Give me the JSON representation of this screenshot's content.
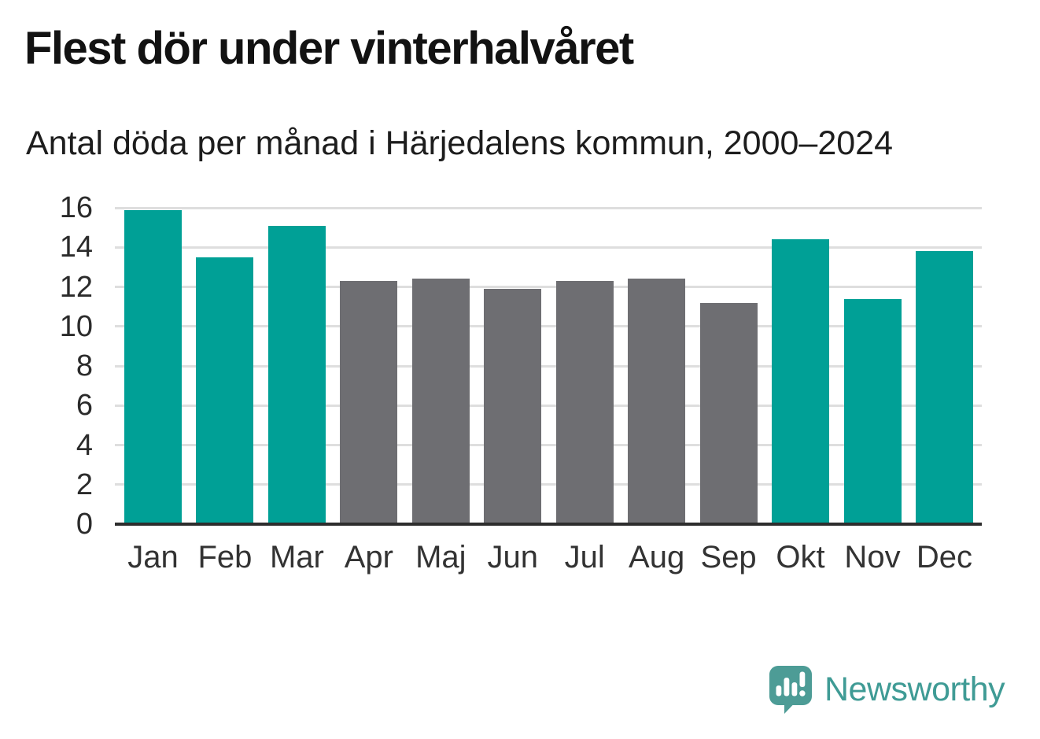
{
  "page": {
    "title": "Flest dör under vinterhalvåret",
    "subtitle": "Antal döda per månad i Härjedalens kommun, 2000–2024"
  },
  "chart_data": {
    "type": "bar",
    "title": "Flest dör under vinterhalvåret",
    "subtitle": "Antal döda per månad i Härjedalens kommun, 2000–2024",
    "categories": [
      "Jan",
      "Feb",
      "Mar",
      "Apr",
      "Maj",
      "Jun",
      "Jul",
      "Aug",
      "Sep",
      "Okt",
      "Nov",
      "Dec"
    ],
    "values": [
      15.9,
      13.5,
      15.1,
      12.3,
      12.4,
      11.9,
      12.3,
      12.4,
      11.2,
      14.4,
      11.4,
      13.8
    ],
    "bar_colors": [
      "teal",
      "teal",
      "teal",
      "gray",
      "gray",
      "gray",
      "gray",
      "gray",
      "gray",
      "teal",
      "teal",
      "teal"
    ],
    "xlabel": "",
    "ylabel": "",
    "ylim": [
      0,
      16
    ],
    "yticks": [
      0,
      2,
      4,
      6,
      8,
      10,
      12,
      14,
      16
    ],
    "grid": true,
    "legend": "none",
    "colors": {
      "highlight": "#00a096",
      "muted": "#6e6e72",
      "gridline": "#dedede",
      "axis": "#2d2d2d"
    }
  },
  "branding": {
    "logo_text": "Newsworthy",
    "logo_color": "#3f9b95",
    "logo_icon": "bar-chart-speech-bubble-icon",
    "logo_icon_color": "#4d9c96"
  }
}
